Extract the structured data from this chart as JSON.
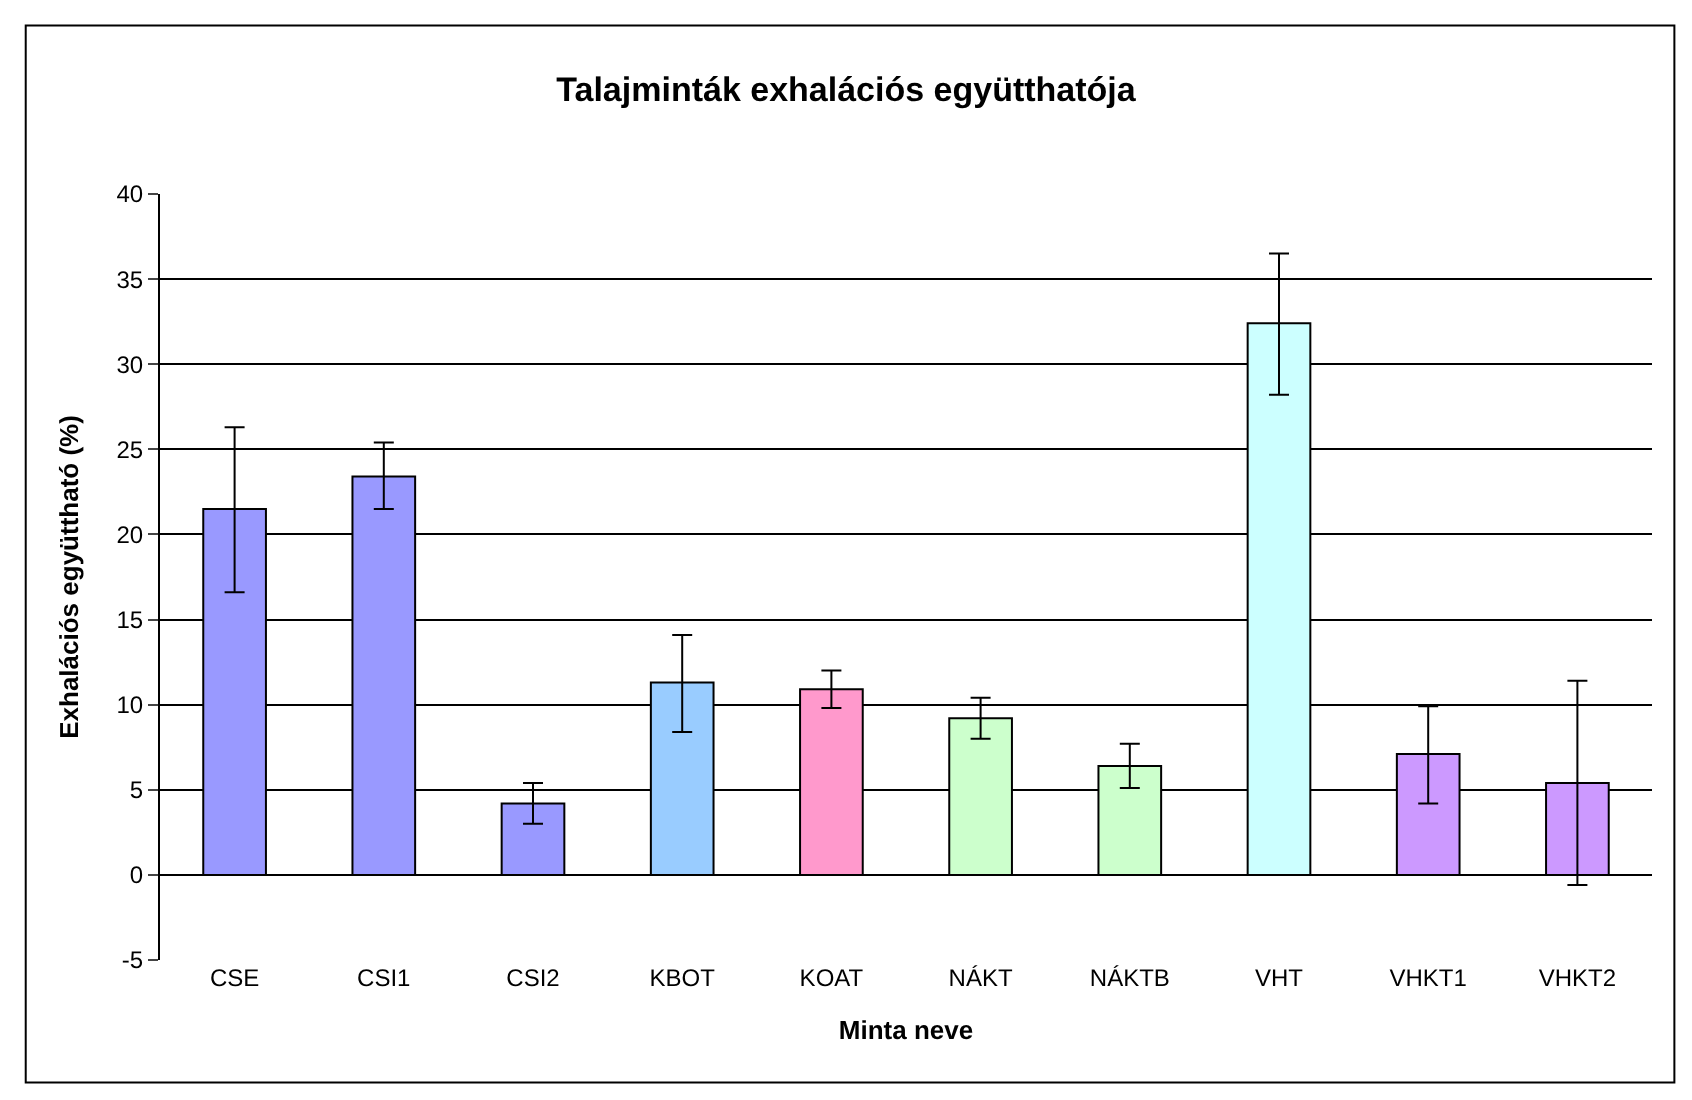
{
  "chart_data": {
    "type": "bar",
    "title": "Talajminták exhalációs együtthatója",
    "xlabel": "Minta neve",
    "ylabel": "Exhalációs együttható (%)",
    "categories": [
      "CSE",
      "CSI1",
      "CSI2",
      "KBOT",
      "KOAT",
      "NÁKT",
      "NÁKTB",
      "VHT",
      "VHKT1",
      "VHKT2"
    ],
    "values": [
      21.5,
      23.4,
      4.2,
      11.3,
      10.9,
      9.2,
      6.4,
      32.4,
      7.1,
      5.4
    ],
    "colors": [
      "#9999ff",
      "#9999ff",
      "#9999ff",
      "#99ccff",
      "#ff99cc",
      "#ccffcc",
      "#ccffcc",
      "#ccffff",
      "#cc99ff",
      "#cc99ff"
    ],
    "errors": [
      [
        16.6,
        26.3
      ],
      [
        21.5,
        25.4
      ],
      [
        3.0,
        5.4
      ],
      [
        8.4,
        14.1
      ],
      [
        9.8,
        12.0
      ],
      [
        8.0,
        10.4
      ],
      [
        5.1,
        7.7
      ],
      [
        28.2,
        36.5
      ],
      [
        4.2,
        9.9
      ],
      [
        -0.6,
        11.4
      ]
    ],
    "ylim": [
      -5,
      40
    ],
    "yticks": [
      -5,
      0,
      5,
      10,
      15,
      20,
      25,
      30,
      35,
      40
    ],
    "grid": "y"
  }
}
